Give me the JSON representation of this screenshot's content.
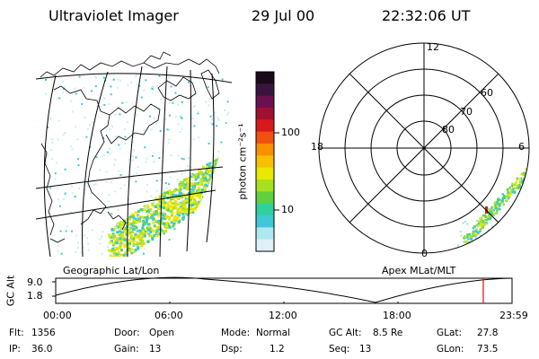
{
  "header": {
    "instrument": "Ultraviolet Imager",
    "date": "29 Jul 00",
    "time": "22:32:06 UT"
  },
  "colorbar": {
    "unit_label": "photon cm⁻²s⁻¹",
    "ticks": [
      "100",
      "10"
    ],
    "colors": [
      "#1a0a1a",
      "#3a1440",
      "#6a1050",
      "#a01030",
      "#d81a1a",
      "#f05010",
      "#f89000",
      "#f8c000",
      "#e8e800",
      "#a8e020",
      "#60d040",
      "#30d0a0",
      "#40c8d8",
      "#b0e8f0",
      "#e0f0f8"
    ]
  },
  "geo_map": {
    "caption": "Geographic Lat/Lon",
    "aurora_colors": [
      "#e8e800",
      "#c8e020",
      "#a0dc30",
      "#60d060",
      "#30d0b0",
      "#40c8d8"
    ]
  },
  "polar_plot": {
    "caption": "Apex MLat/MLT",
    "mlt_labels": {
      "top": "12",
      "bottom": "0",
      "left": "18",
      "right": "6"
    },
    "lat_labels": [
      "80",
      "70",
      "60"
    ]
  },
  "altitude_plot": {
    "axis_label": "GC Alt",
    "y_ticks": [
      "9.0",
      "1.8"
    ],
    "time_ticks": [
      "00:00",
      "06:00",
      "12:00",
      "18:00",
      "23:59"
    ],
    "marker_color": "#d01010"
  },
  "status": {
    "flt_label": "Flt:",
    "flt_value": "1356",
    "ip_label": "IP:",
    "ip_value": "36.0",
    "door_label": "Door:",
    "door_value": "Open",
    "gain_label": "Gain:",
    "gain_value": "13",
    "mode_label": "Mode:",
    "mode_value": "Normal",
    "dsp_label": "Dsp:",
    "dsp_value": "1.2",
    "gcalt_label": "GC Alt:",
    "gcalt_value": "8.5 Re",
    "seq_label": "Seq:",
    "seq_value": "13",
    "glat_label": "GLat:",
    "glat_value": "27.8",
    "glon_label": "GLon:",
    "glon_value": "73.5"
  }
}
